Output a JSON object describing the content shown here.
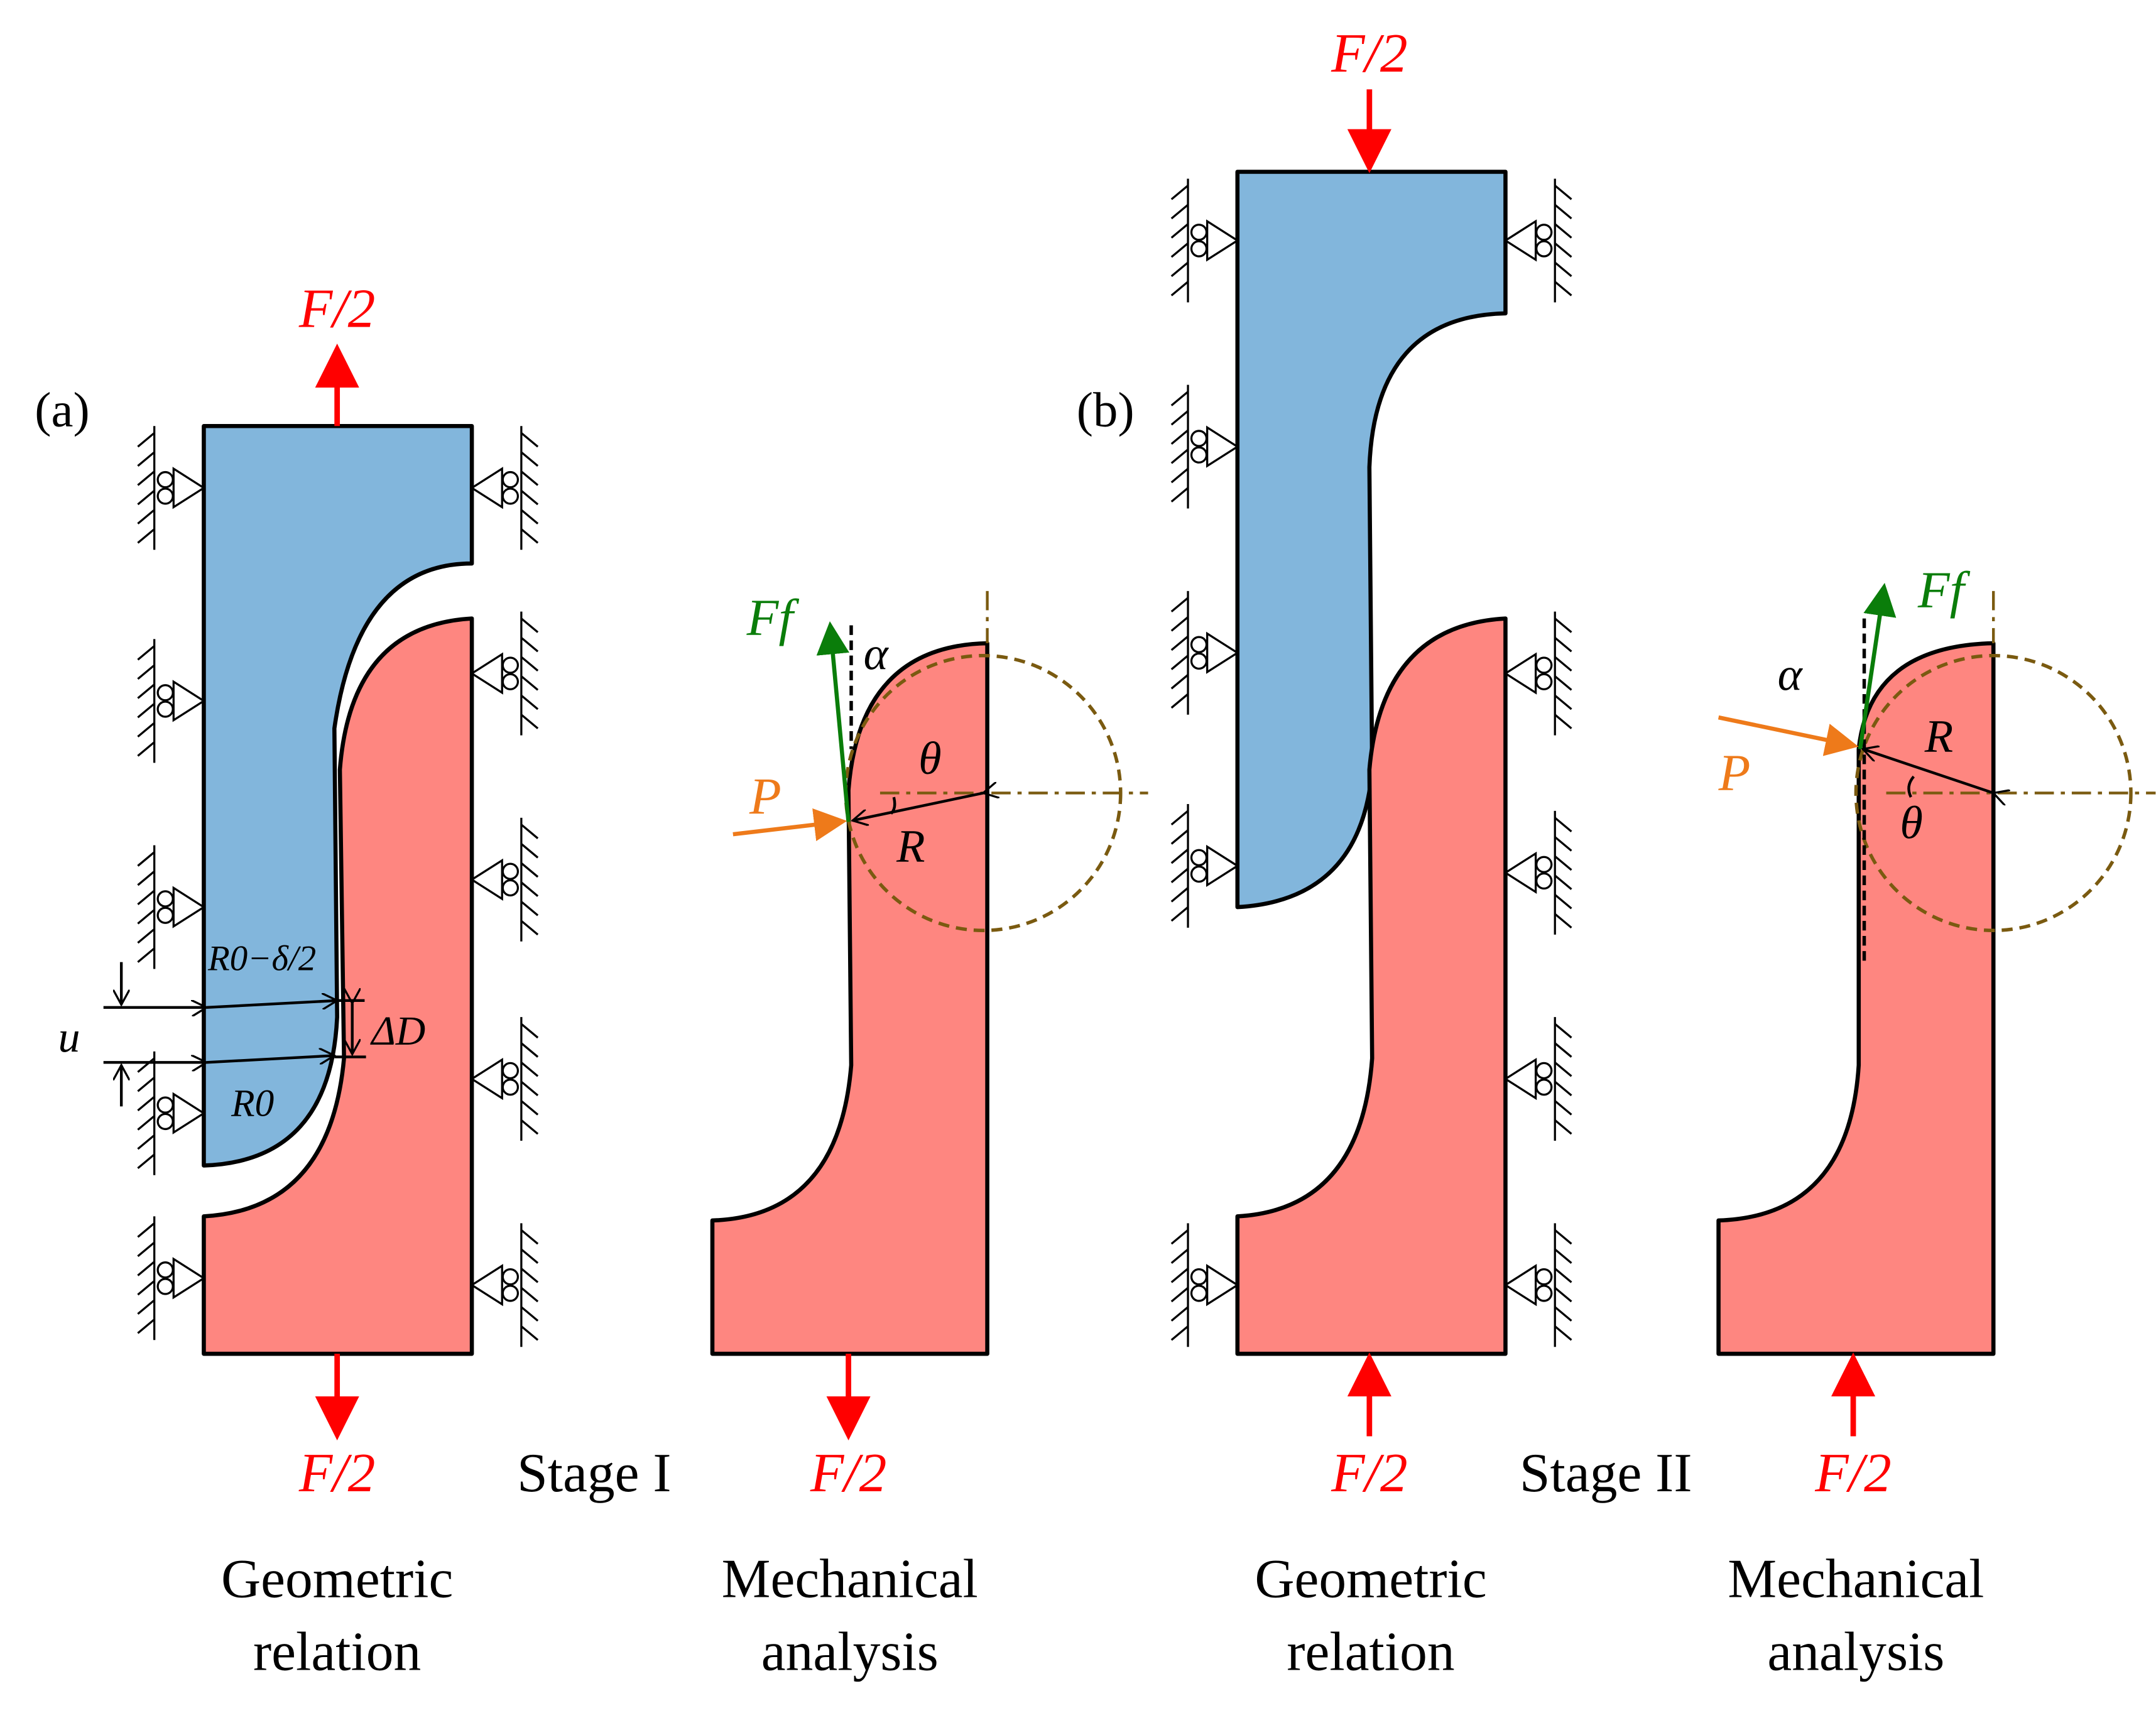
{
  "colors": {
    "upper_block": "#82b6dc",
    "lower_block": "#fe8680",
    "force": "#ff0000",
    "friction": "#0a7d0a",
    "pressure": "#ee7a1a",
    "circle": "#7a5a10"
  },
  "panel_a": {
    "label": "(a)",
    "force_top": "F/2",
    "force_bottom": "F/2",
    "force_mech": "F/2",
    "stage": "Stage I",
    "dims": {
      "r0_minus": "R0−δ/2",
      "r0": "R0",
      "delta_d": "ΔD",
      "u": "u"
    },
    "mech": {
      "ff": "Ff",
      "alpha": "α",
      "p": "P",
      "theta": "θ",
      "r": "R"
    },
    "caption_geo": [
      "Geometric",
      "relation"
    ],
    "caption_mech": [
      "Mechanical",
      "analysis"
    ]
  },
  "panel_b": {
    "label": "(b)",
    "force_top": "F/2",
    "force_bottom": "F/2",
    "force_mech": "F/2",
    "stage": "Stage II",
    "mech": {
      "ff": "Ff",
      "alpha": "α",
      "p": "P",
      "theta": "θ",
      "r": "R"
    },
    "caption_geo": [
      "Geometric",
      "relation"
    ],
    "caption_mech": [
      "Mechanical",
      "analysis"
    ]
  }
}
